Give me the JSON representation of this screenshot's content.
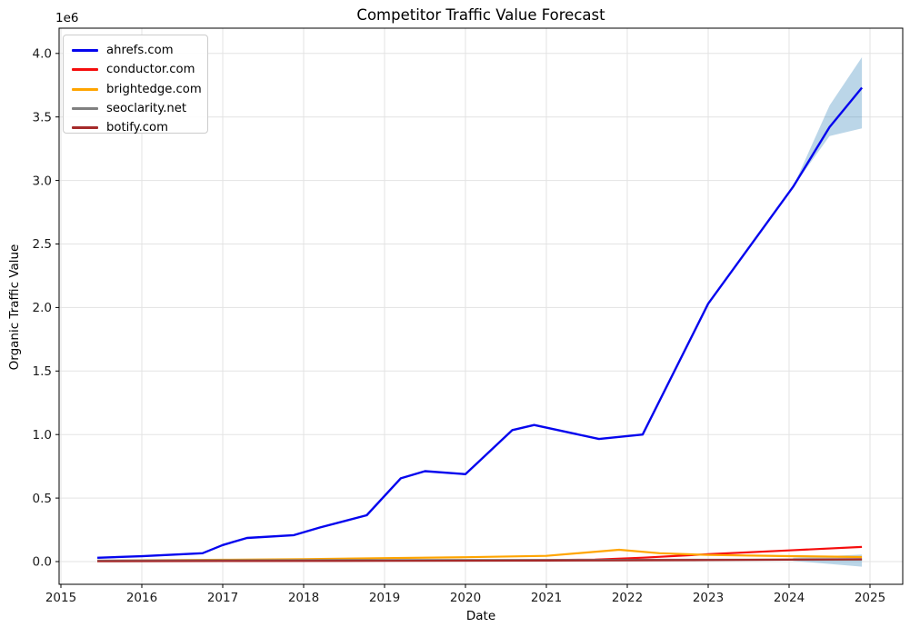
{
  "chart_data": {
    "type": "line",
    "title": "Competitor Traffic Value Forecast",
    "xlabel": "Date",
    "ylabel": "Organic Traffic Value",
    "y_offset_text": "1e6",
    "value_unit": "millions (axis shows 1e6 multiplier)",
    "xlim": [
      2014.98,
      2025.4
    ],
    "ylim": [
      -0.18,
      4.2
    ],
    "x_ticks": [
      2015,
      2016,
      2017,
      2018,
      2019,
      2020,
      2021,
      2022,
      2023,
      2024,
      2025
    ],
    "y_ticks": [
      0.0,
      0.5,
      1.0,
      1.5,
      2.0,
      2.5,
      3.0,
      3.5,
      4.0
    ],
    "grid": true,
    "legend_position": "upper left",
    "series": [
      {
        "name": "ahrefs.com",
        "color": "#0505ee",
        "line_width": 2.4,
        "points": [
          [
            2015.45,
            0.03
          ],
          [
            2016.0,
            0.042
          ],
          [
            2016.75,
            0.066
          ],
          [
            2017.0,
            0.13
          ],
          [
            2017.3,
            0.186
          ],
          [
            2017.88,
            0.208
          ],
          [
            2018.2,
            0.268
          ],
          [
            2018.78,
            0.365
          ],
          [
            2019.2,
            0.655
          ],
          [
            2019.5,
            0.712
          ],
          [
            2020.0,
            0.688
          ],
          [
            2020.58,
            1.035
          ],
          [
            2020.85,
            1.075
          ],
          [
            2021.65,
            0.965
          ],
          [
            2022.19,
            1.0
          ],
          [
            2023.0,
            2.03
          ],
          [
            2024.05,
            2.95
          ],
          [
            2024.5,
            3.42
          ],
          [
            2024.9,
            3.73
          ]
        ]
      },
      {
        "name": "conductor.com",
        "color": "#f50d0d",
        "line_width": 2.2,
        "points": [
          [
            2015.45,
            0.004
          ],
          [
            2016.0,
            0.005
          ],
          [
            2017.0,
            0.006
          ],
          [
            2018.0,
            0.008
          ],
          [
            2019.0,
            0.009
          ],
          [
            2020.0,
            0.009
          ],
          [
            2021.0,
            0.012
          ],
          [
            2021.6,
            0.016
          ],
          [
            2022.2,
            0.031
          ],
          [
            2023.0,
            0.058
          ],
          [
            2024.0,
            0.088
          ],
          [
            2024.9,
            0.115
          ]
        ]
      },
      {
        "name": "brightedge.com",
        "color": "#ffa500",
        "line_width": 2.2,
        "points": [
          [
            2015.45,
            0.006
          ],
          [
            2016.0,
            0.01
          ],
          [
            2017.0,
            0.014
          ],
          [
            2018.0,
            0.019
          ],
          [
            2019.0,
            0.027
          ],
          [
            2020.0,
            0.034
          ],
          [
            2021.0,
            0.045
          ],
          [
            2021.9,
            0.093
          ],
          [
            2022.4,
            0.066
          ],
          [
            2023.0,
            0.052
          ],
          [
            2024.0,
            0.043
          ],
          [
            2024.9,
            0.036
          ]
        ]
      },
      {
        "name": "seoclarity.net",
        "color": "#808080",
        "line_width": 2.2,
        "points": [
          [
            2015.45,
            0.008
          ],
          [
            2017.0,
            0.01
          ],
          [
            2019.0,
            0.012
          ],
          [
            2021.0,
            0.013
          ],
          [
            2023.0,
            0.014
          ],
          [
            2024.9,
            0.016
          ]
        ]
      },
      {
        "name": "botify.com",
        "color": "#a52a2a",
        "line_width": 2.2,
        "points": [
          [
            2015.45,
            0.002
          ],
          [
            2017.0,
            0.004
          ],
          [
            2019.0,
            0.006
          ],
          [
            2021.0,
            0.008
          ],
          [
            2023.0,
            0.012
          ],
          [
            2024.9,
            0.018
          ]
        ]
      }
    ],
    "confidence_bands": [
      {
        "series": "ahrefs.com forecast interval",
        "color": "rgba(31,119,180,0.3)",
        "upper": [
          [
            2024.05,
            2.95
          ],
          [
            2024.5,
            3.59
          ],
          [
            2024.9,
            3.97
          ]
        ],
        "lower": [
          [
            2024.05,
            2.95
          ],
          [
            2024.5,
            3.35
          ],
          [
            2024.9,
            3.41
          ]
        ]
      },
      {
        "series": "near-zero forecast interval",
        "color": "rgba(31,119,180,0.3)",
        "upper": [
          [
            2024.05,
            0.03
          ],
          [
            2024.9,
            0.055
          ]
        ],
        "lower": [
          [
            2024.05,
            0.005
          ],
          [
            2024.9,
            -0.04
          ]
        ]
      }
    ]
  }
}
